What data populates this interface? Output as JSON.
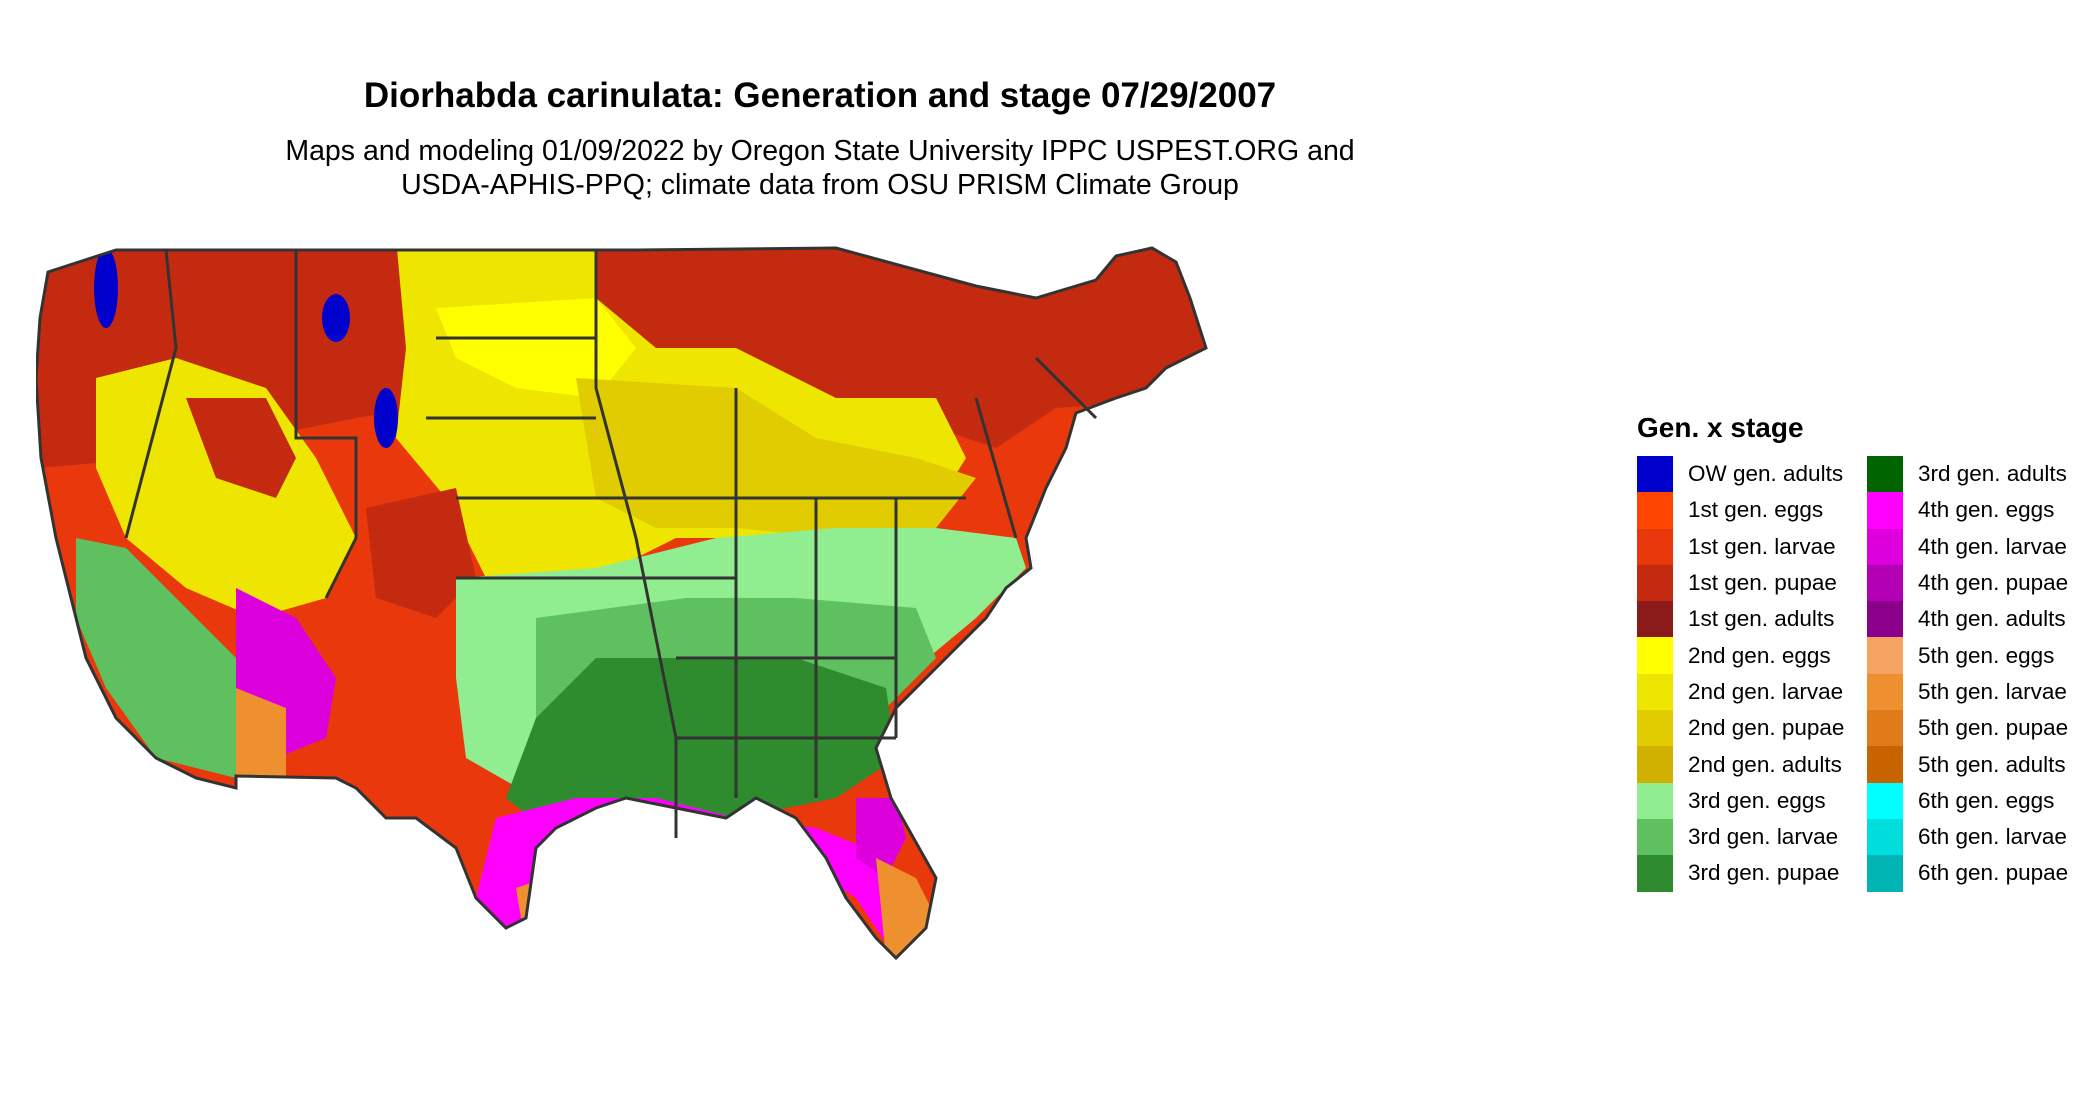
{
  "title": "Diorhabda carinulata: Generation and stage 07/29/2007",
  "subtitle_lines": [
    "Maps and modeling 01/09/2022 by Oregon State University IPPC USPEST.ORG and",
    "USDA-APHIS-PPQ; climate data from OSU PRISM Climate Group"
  ],
  "legend": {
    "title": "Gen. x stage",
    "items": [
      {
        "label": "OW gen. adults",
        "color": "#0000CC"
      },
      {
        "label": "1st gen. eggs",
        "color": "#FF4500"
      },
      {
        "label": "1st gen. larvae",
        "color": "#E8380C"
      },
      {
        "label": "1st gen. pupae",
        "color": "#C42A10"
      },
      {
        "label": "1st gen. adults",
        "color": "#8B1A1A"
      },
      {
        "label": "2nd gen. eggs",
        "color": "#FFFF00"
      },
      {
        "label": "2nd gen. larvae",
        "color": "#EEE600"
      },
      {
        "label": "2nd gen. pupae",
        "color": "#E0CC00"
      },
      {
        "label": "2nd gen. adults",
        "color": "#D0B000"
      },
      {
        "label": "3rd gen. eggs",
        "color": "#90EE90"
      },
      {
        "label": "3rd gen. larvae",
        "color": "#5FC05F"
      },
      {
        "label": "3rd gen. pupae",
        "color": "#2E8B2E"
      },
      {
        "label": "3rd gen. adults",
        "color": "#006400"
      },
      {
        "label": "4th gen. eggs",
        "color": "#FF00FF"
      },
      {
        "label": "4th gen. larvae",
        "color": "#DD00DD"
      },
      {
        "label": "4th gen. pupae",
        "color": "#B400B4"
      },
      {
        "label": "4th gen. adults",
        "color": "#8B008B"
      },
      {
        "label": "5th gen. eggs",
        "color": "#F4A460"
      },
      {
        "label": "5th gen. larvae",
        "color": "#EE9030"
      },
      {
        "label": "5th gen. pupae",
        "color": "#E07B1A"
      },
      {
        "label": "5th gen. adults",
        "color": "#C86400"
      },
      {
        "label": "6th gen. eggs",
        "color": "#00FFFF"
      },
      {
        "label": "6th gen. larvae",
        "color": "#00DDDD"
      },
      {
        "label": "6th gen. pupae",
        "color": "#00B4B4"
      }
    ]
  },
  "map": {
    "state_border_color": "#333333",
    "background_color": "#ffffff"
  }
}
